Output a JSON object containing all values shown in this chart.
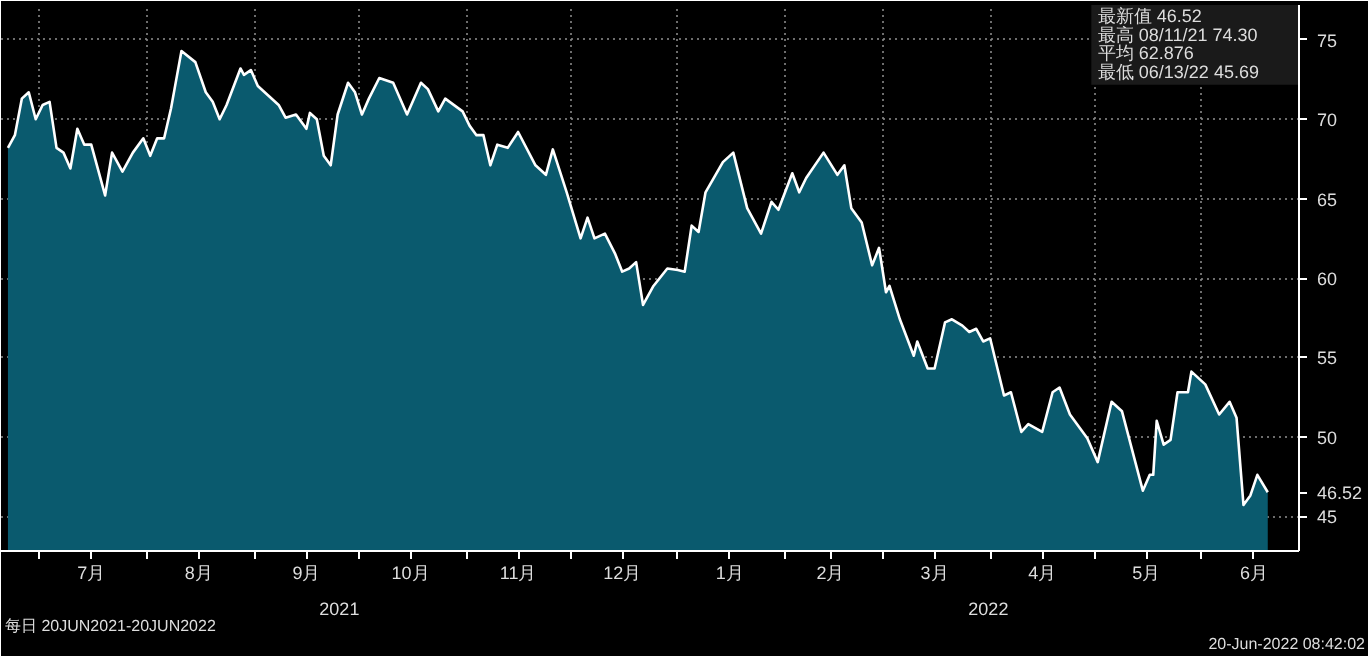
{
  "chart_data": {
    "type": "area",
    "x": [
      "2021-06-22",
      "2021-06-24",
      "2021-06-26",
      "2021-06-28",
      "2021-06-30",
      "2021-07-02",
      "2021-07-04",
      "2021-07-06",
      "2021-07-08",
      "2021-07-10",
      "2021-07-12",
      "2021-07-14",
      "2021-07-16",
      "2021-07-20",
      "2021-07-22",
      "2021-07-25",
      "2021-07-28",
      "2021-07-31",
      "2021-08-02",
      "2021-08-04",
      "2021-08-06",
      "2021-08-08",
      "2021-08-09",
      "2021-08-11",
      "2021-08-15",
      "2021-08-18",
      "2021-08-20",
      "2021-08-22",
      "2021-08-24",
      "2021-08-28",
      "2021-08-29",
      "2021-08-31",
      "2021-09-02",
      "2021-09-05",
      "2021-09-08",
      "2021-09-10",
      "2021-09-13",
      "2021-09-16",
      "2021-09-17",
      "2021-09-19",
      "2021-09-21",
      "2021-09-23",
      "2021-09-25",
      "2021-09-28",
      "2021-09-30",
      "2021-10-02",
      "2021-10-04",
      "2021-10-07",
      "2021-10-11",
      "2021-10-15",
      "2021-10-19",
      "2021-10-21",
      "2021-10-24",
      "2021-10-26",
      "2021-10-31",
      "2021-11-02",
      "2021-11-04",
      "2021-11-06",
      "2021-11-08",
      "2021-11-10",
      "2021-11-13",
      "2021-11-16",
      "2021-11-21",
      "2021-11-24",
      "2021-11-26",
      "2021-11-30",
      "2021-12-04",
      "2021-12-06",
      "2021-12-08",
      "2021-12-11",
      "2021-12-14",
      "2021-12-16",
      "2021-12-18",
      "2021-12-20",
      "2021-12-22",
      "2021-12-25",
      "2021-12-29",
      "2022-01-01",
      "2022-01-03",
      "2022-01-05",
      "2022-01-07",
      "2022-01-09",
      "2022-01-14",
      "2022-01-17",
      "2022-01-21",
      "2022-01-25",
      "2022-01-28",
      "2022-01-30",
      "2022-02-03",
      "2022-02-05",
      "2022-02-07",
      "2022-02-12",
      "2022-02-16",
      "2022-02-18",
      "2022-02-20",
      "2022-02-23",
      "2022-02-26",
      "2022-02-28",
      "2022-03-02",
      "2022-03-03",
      "2022-03-06",
      "2022-03-10",
      "2022-03-11",
      "2022-03-14",
      "2022-03-16",
      "2022-03-19",
      "2022-03-21",
      "2022-03-24",
      "2022-03-26",
      "2022-03-28",
      "2022-03-30",
      "2022-04-01",
      "2022-04-05",
      "2022-04-07",
      "2022-04-10",
      "2022-04-12",
      "2022-04-16",
      "2022-04-19",
      "2022-04-21",
      "2022-04-24",
      "2022-04-29",
      "2022-05-02",
      "2022-05-06",
      "2022-05-09",
      "2022-05-15",
      "2022-05-17",
      "2022-05-18",
      "2022-05-19",
      "2022-05-21",
      "2022-05-23",
      "2022-05-25",
      "2022-05-28",
      "2022-05-29",
      "2022-06-02",
      "2022-06-06",
      "2022-06-09",
      "2022-06-11",
      "2022-06-13",
      "2022-06-15",
      "2022-06-17",
      "2022-06-20"
    ],
    "series": [
      {
        "color": "#0a5a6e",
        "values": [
          68.2,
          69.0,
          71.3,
          71.7,
          70.0,
          70.9,
          71.1,
          68.2,
          67.9,
          66.9,
          69.4,
          68.4,
          68.4,
          65.2,
          67.9,
          66.7,
          67.9,
          68.8,
          67.7,
          68.8,
          68.8,
          70.7,
          71.9,
          74.3,
          73.6,
          71.7,
          71.1,
          70.0,
          70.9,
          73.2,
          72.8,
          73.1,
          72.1,
          71.5,
          70.9,
          70.1,
          70.3,
          69.4,
          70.4,
          70.0,
          67.7,
          67.1,
          70.3,
          72.3,
          71.7,
          70.3,
          71.3,
          72.6,
          72.3,
          70.3,
          72.3,
          71.9,
          70.5,
          71.3,
          70.5,
          69.6,
          69.0,
          69.0,
          67.1,
          68.4,
          68.2,
          69.2,
          67.1,
          66.5,
          68.1,
          65.4,
          62.5,
          63.8,
          62.5,
          62.8,
          61.5,
          60.4,
          60.6,
          61.0,
          58.3,
          59.5,
          60.6,
          60.5,
          60.4,
          63.3,
          62.9,
          65.4,
          67.3,
          67.9,
          64.4,
          62.8,
          64.8,
          64.3,
          66.6,
          65.4,
          66.3,
          67.9,
          66.5,
          67.1,
          64.4,
          63.5,
          60.8,
          61.9,
          59.1,
          59.5,
          57.4,
          55.1,
          56.0,
          54.3,
          54.3,
          57.2,
          57.4,
          57.0,
          56.6,
          56.8,
          56.0,
          56.2,
          52.6,
          52.8,
          50.3,
          50.8,
          50.3,
          52.8,
          53.1,
          51.4,
          49.9,
          48.4,
          52.2,
          51.6,
          46.6,
          47.6,
          47.6,
          51.0,
          49.5,
          49.8,
          52.8,
          52.8,
          54.1,
          53.3,
          51.4,
          52.2,
          51.2,
          45.7,
          46.3,
          47.6,
          46.5
        ]
      }
    ],
    "xlim": [
      "2021-06-20",
      "2022-06-29"
    ],
    "xticks": [
      {
        "value": "2021-07-01",
        "label": null
      },
      {
        "value": "2021-07-16",
        "label": "7月"
      },
      {
        "value": "2021-08-01",
        "label": null
      },
      {
        "value": "2021-08-16",
        "label": "8月"
      },
      {
        "value": "2021-09-01",
        "label": null
      },
      {
        "value": "2021-09-16",
        "label": "9月"
      },
      {
        "value": "2021-10-01",
        "label": null
      },
      {
        "value": "2021-10-16",
        "label": "10月"
      },
      {
        "value": "2021-11-01",
        "label": null
      },
      {
        "value": "2021-11-16",
        "label": "11月"
      },
      {
        "value": "2021-12-01",
        "label": null
      },
      {
        "value": "2021-12-16",
        "label": "12月"
      },
      {
        "value": "2022-01-01",
        "label": null
      },
      {
        "value": "2022-01-16",
        "label": "1月"
      },
      {
        "value": "2022-02-01",
        "label": null
      },
      {
        "value": "2022-02-14",
        "label": "2月"
      },
      {
        "value": "2022-03-01",
        "label": null
      },
      {
        "value": "2022-03-16",
        "label": "3月"
      },
      {
        "value": "2022-04-01",
        "label": null
      },
      {
        "value": "2022-04-16",
        "label": "4月"
      },
      {
        "value": "2022-05-01",
        "label": null
      },
      {
        "value": "2022-05-16",
        "label": "5月"
      },
      {
        "value": "2022-06-01",
        "label": null
      },
      {
        "value": "2022-06-16",
        "label": "6月"
      }
    ],
    "ylim": [
      42.8,
      77.2
    ],
    "yticks": [
      45,
      50,
      55,
      60,
      65,
      70,
      75
    ],
    "grid": true,
    "annotations": [
      "最新值  46.52",
      "最高  08/11/21  74.30",
      "平均  62.876",
      "最低  06/13/22  45.69",
      "2021",
      "2022",
      "46.52",
      "每日 20JUN2021-20JUN2022",
      "20-Jun-2022 08:42:02"
    ]
  }
}
